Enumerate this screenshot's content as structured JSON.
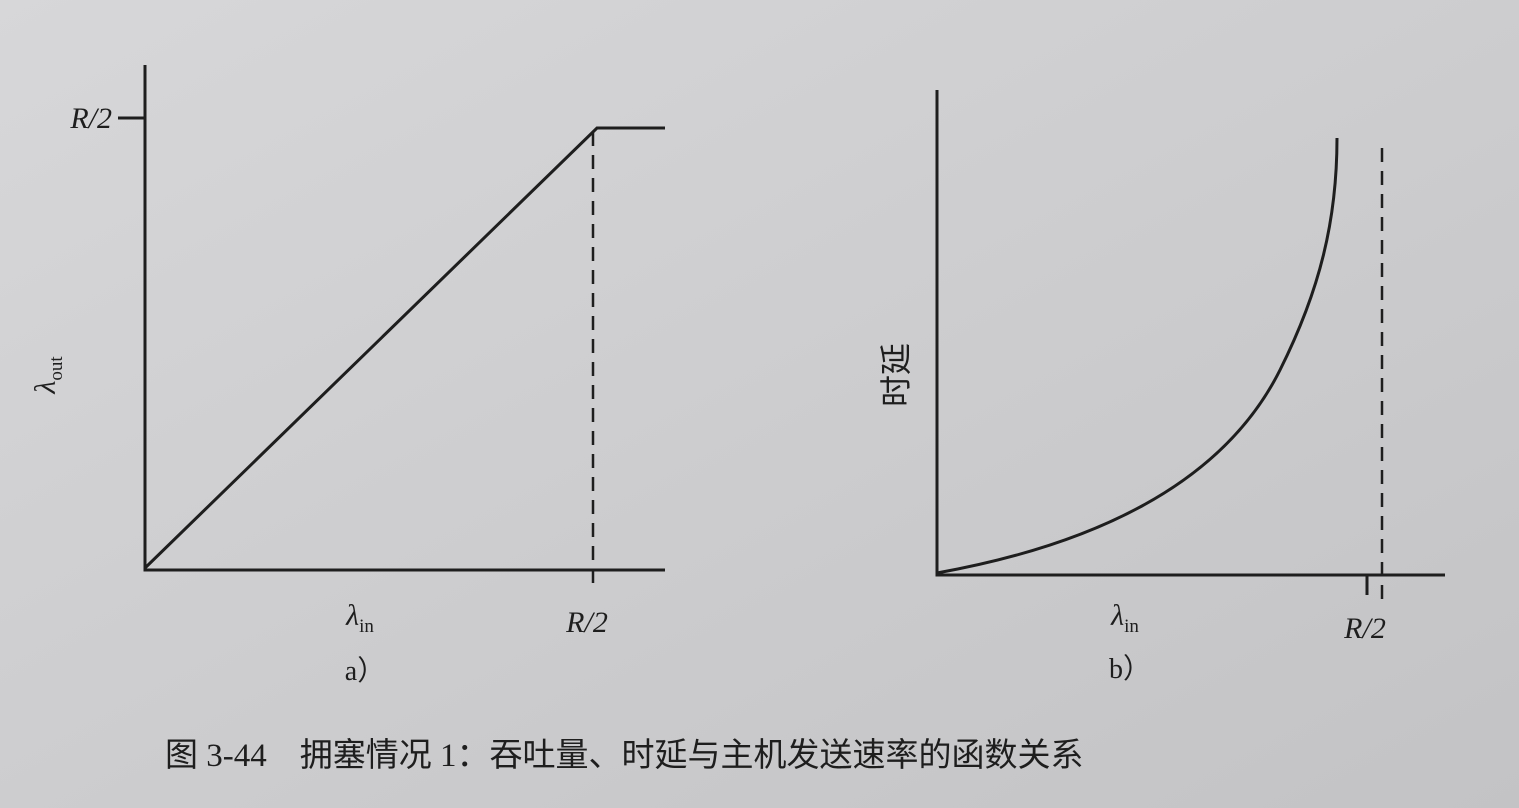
{
  "panel_a": {
    "y_label": {
      "symbol": "λ",
      "subscript": "out"
    },
    "y_tick": "R/2",
    "x_label": {
      "symbol": "λ",
      "subscript": "in"
    },
    "x_tick": "R/2",
    "caption": "a）"
  },
  "panel_b": {
    "y_label": "时延",
    "x_label": {
      "symbol": "λ",
      "subscript": "in"
    },
    "x_tick": "R/2",
    "caption": "b）"
  },
  "figure_caption": "图 3-44　拥塞情况 1：吞吐量、时延与主机发送速率的函数关系"
}
